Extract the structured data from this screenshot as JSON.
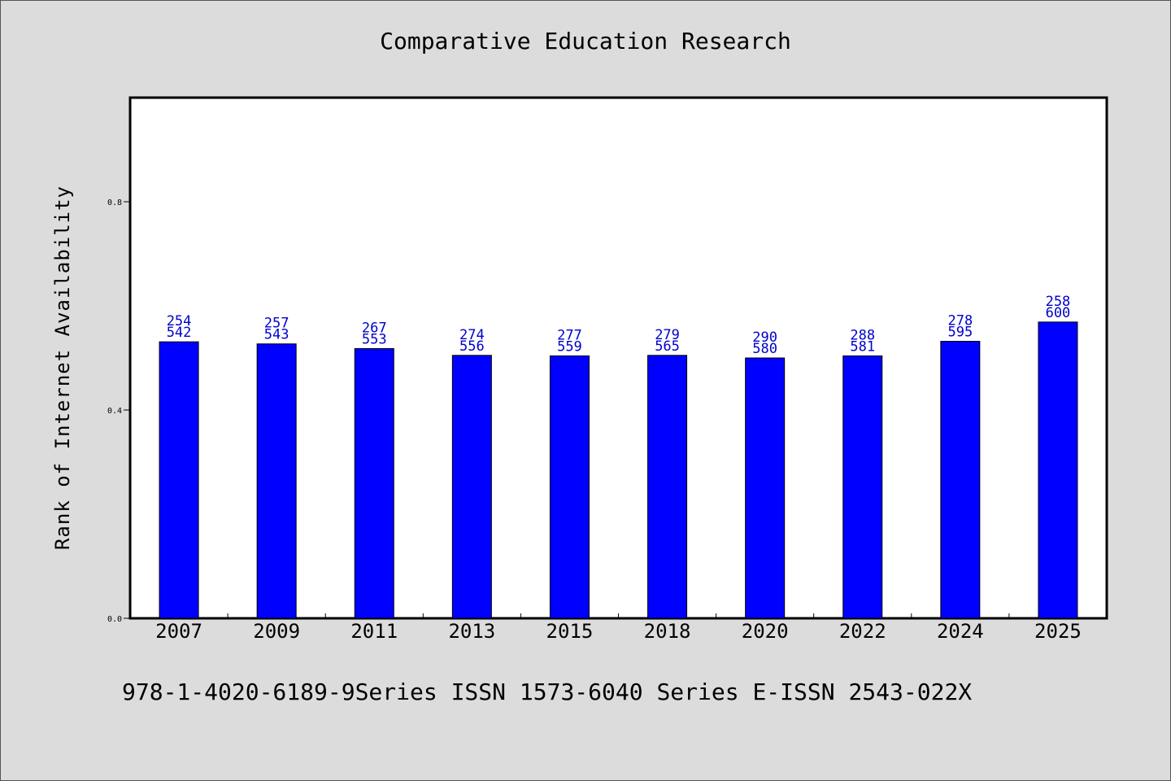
{
  "chart_data": {
    "type": "bar",
    "title": "Comparative Education Research",
    "xlabel": "",
    "ylabel": "Rank of Internet Availability",
    "ylim": [
      0,
      1.0
    ],
    "yticks": [
      "0.0",
      "0.4",
      "0.8"
    ],
    "ytick_values": [
      0.0,
      0.4,
      0.8
    ],
    "grid": false,
    "categories": [
      "2007",
      "2009",
      "2011",
      "2013",
      "2015",
      "2018",
      "2020",
      "2022",
      "2024",
      "2025"
    ],
    "values": [
      0.531,
      0.527,
      0.518,
      0.505,
      0.504,
      0.505,
      0.5,
      0.504,
      0.532,
      0.569
    ],
    "label_top": [
      "254",
      "257",
      "267",
      "274",
      "277",
      "279",
      "290",
      "288",
      "278",
      "258"
    ],
    "label_bottom": [
      "542",
      "543",
      "553",
      "556",
      "559",
      "565",
      "580",
      "581",
      "595",
      "600"
    ]
  },
  "colors": {
    "bar": "#0000ff",
    "label": "#0000cc",
    "background": "#dcdcdc",
    "plot_background": "#ffffff"
  },
  "footer": "978-1-4020-6189-9Series ISSN 1573-6040 Series E-ISSN 2543-022X"
}
